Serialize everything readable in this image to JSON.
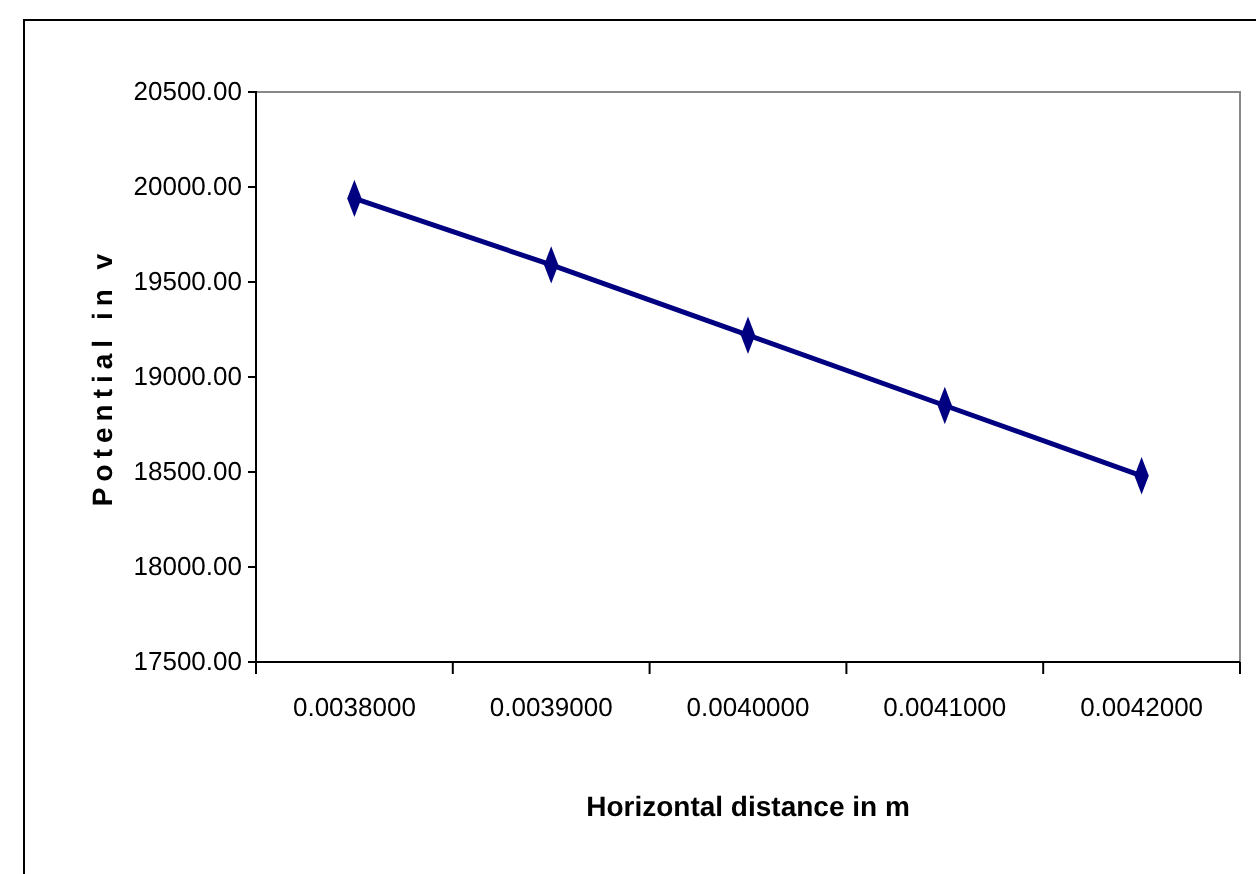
{
  "chart_data": {
    "type": "line",
    "xlabel": "Horizontal distance in m",
    "ylabel": "Potential in v",
    "categories": [
      "0.0038000",
      "0.0039000",
      "0.0040000",
      "0.0041000",
      "0.0042000"
    ],
    "series": [
      {
        "color": "#000080",
        "values": [
          19940,
          19590,
          19220,
          18850,
          18480
        ]
      }
    ],
    "ylim": [
      17500,
      20500
    ],
    "yticks": [
      {
        "value": 17500,
        "label": "17500.00"
      },
      {
        "value": 18000,
        "label": "18000.00"
      },
      {
        "value": 18500,
        "label": "18500.00"
      },
      {
        "value": 19000,
        "label": "19000.00"
      },
      {
        "value": 19500,
        "label": "19500.00"
      },
      {
        "value": 20000,
        "label": "20000.00"
      },
      {
        "value": 20500,
        "label": "20500.00"
      }
    ],
    "grid": false,
    "marker": "diamond",
    "line_style": "solid"
  }
}
